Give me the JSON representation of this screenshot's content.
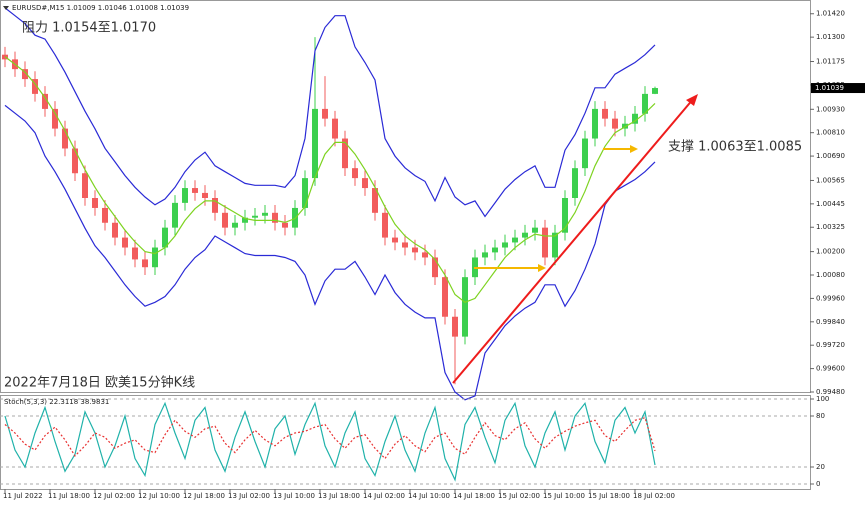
{
  "chart_data": [
    {
      "type": "candlestick",
      "title": "EURUSD#,M15  1.01009 1.01046 1.01008 1.01039",
      "annotations": [
        "阻力 1.0154至1.0170",
        "支撑 1.0063至1.0085",
        "2022年7月18日 欧美15分钟K线"
      ],
      "up_color": "#3ccf4e",
      "down_color": "#f25c5c",
      "open": [
        1.0121,
        1.01186,
        1.01136,
        1.01085,
        1.01009,
        1.00932,
        1.00831,
        1.00729,
        1.00602,
        1.00475,
        1.00424,
        1.00348,
        1.00272,
        1.00221,
        1.0016,
        1.0012,
        1.00221,
        1.00323,
        1.0045,
        1.00526,
        1.00501,
        1.00475,
        1.00399,
        1.00323,
        1.00348,
        1.00374,
        1.00384,
        1.00399,
        1.00348,
        1.00323,
        1.00424,
        1.00577,
        1.00932,
        1.00882,
        1.0078,
        1.00628,
        1.00577,
        1.00526,
        1.00399,
        1.00272,
        1.00247,
        1.00221,
        1.00196,
        1.0017,
        1.00069,
        0.99866,
        0.99764,
        1.00069,
        1.0017,
        1.00196,
        1.00221,
        1.00247,
        1.00272,
        1.00297,
        1.00323,
        1.0017,
        1.00297,
        1.00475,
        1.00628,
        1.0078,
        1.00932,
        1.00882,
        1.00831,
        1.00856,
        1.00907,
        1.01009
      ],
      "high": [
        1.0125,
        1.01226,
        1.01176,
        1.01125,
        1.01049,
        1.00972,
        1.00871,
        1.00769,
        1.00642,
        1.00515,
        1.00464,
        1.00388,
        1.00312,
        1.00261,
        1.002,
        1.00261,
        1.00363,
        1.0049,
        1.00566,
        1.00566,
        1.00541,
        1.00515,
        1.00439,
        1.00388,
        1.00414,
        1.00424,
        1.00439,
        1.00439,
        1.00388,
        1.00464,
        1.00617,
        1.013,
        1.011,
        1.00922,
        1.0082,
        1.00668,
        1.00617,
        1.00566,
        1.00439,
        1.00312,
        1.00287,
        1.00261,
        1.00236,
        1.0021,
        1.00109,
        0.99906,
        1.00109,
        1.0021,
        1.00236,
        1.00261,
        1.00287,
        1.00312,
        1.00337,
        1.00363,
        1.00363,
        1.00337,
        1.00515,
        1.00668,
        1.0082,
        1.00972,
        1.00972,
        1.00922,
        1.00896,
        1.00947,
        1.01049,
        1.01046
      ],
      "low": [
        1.01146,
        1.01096,
        1.01045,
        1.00969,
        1.00892,
        1.00791,
        1.00689,
        1.00562,
        1.00435,
        1.00384,
        1.00308,
        1.00232,
        1.00181,
        1.0012,
        1.0008,
        1.0008,
        1.00181,
        1.00283,
        1.0041,
        1.00461,
        1.00435,
        1.00359,
        1.00283,
        1.00283,
        1.00308,
        1.00334,
        1.00344,
        1.00308,
        1.00283,
        1.00283,
        1.00384,
        1.00537,
        1.00842,
        1.0074,
        1.00588,
        1.00537,
        1.00486,
        1.00359,
        1.00232,
        1.00207,
        1.00181,
        1.00156,
        1.0013,
        1.00029,
        0.99826,
        0.9952,
        0.99724,
        1.00029,
        1.0013,
        1.00156,
        1.00181,
        1.00207,
        1.00232,
        1.00257,
        1.0013,
        1.0013,
        1.00257,
        1.00435,
        1.00588,
        1.0074,
        1.00842,
        1.00791,
        1.00791,
        1.00816,
        1.00867,
        1.01008
      ],
      "close": [
        1.01186,
        1.01136,
        1.01085,
        1.01009,
        1.00932,
        1.00831,
        1.00729,
        1.00602,
        1.00475,
        1.00424,
        1.00348,
        1.00272,
        1.00221,
        1.0016,
        1.0012,
        1.00221,
        1.00323,
        1.0045,
        1.00526,
        1.00501,
        1.00475,
        1.00399,
        1.00323,
        1.00348,
        1.00374,
        1.00384,
        1.00399,
        1.00348,
        1.00323,
        1.00424,
        1.00577,
        1.00932,
        1.00882,
        1.0078,
        1.00628,
        1.00577,
        1.00526,
        1.00399,
        1.00272,
        1.00247,
        1.00221,
        1.00196,
        1.0017,
        1.00069,
        0.99866,
        0.99764,
        1.00069,
        1.0017,
        1.00196,
        1.00221,
        1.00247,
        1.00272,
        1.00297,
        1.00323,
        1.0017,
        1.00297,
        1.00475,
        1.00628,
        1.0078,
        1.00932,
        1.00882,
        1.00831,
        1.00856,
        1.00907,
        1.01009,
        1.01039
      ],
      "series": [
        {
          "color": "#2a2ad6",
          "values": [
            1.0145,
            1.0141,
            1.0137,
            1.0131,
            1.0129,
            1.0121,
            1.0112,
            1.0102,
            1.0092,
            1.0083,
            1.0073,
            1.0066,
            1.0059,
            1.0053,
            1.0048,
            1.0044,
            1.0047,
            1.0053,
            1.0061,
            1.0067,
            1.0071,
            1.0064,
            1.0061,
            1.0058,
            1.0055,
            1.0054,
            1.0054,
            1.0054,
            1.0053,
            1.0059,
            1.0078,
            1.0123,
            1.0135,
            1.0141,
            1.0141,
            1.0125,
            1.0117,
            1.0108,
            1.0078,
            1.0069,
            1.0063,
            1.0059,
            1.0056,
            1.0046,
            1.0058,
            1.0048,
            1.0044,
            1.0046,
            1.0038,
            1.0045,
            1.0052,
            1.0057,
            1.0061,
            1.0064,
            1.0053,
            1.0053,
            1.0072,
            1.008,
            1.0091,
            1.0104,
            1.0104,
            1.0111,
            1.0114,
            1.0117,
            1.0121,
            1.0126
          ]
        },
        {
          "color": "#7ed321",
          "values": [
            1.012,
            1.0116,
            1.0112,
            1.0106,
            1.0099,
            1.0091,
            1.0082,
            1.0072,
            1.0062,
            1.0053,
            1.0045,
            1.0038,
            1.0031,
            1.0025,
            1.002,
            1.0019,
            1.0022,
            1.0028,
            1.0036,
            1.0042,
            1.0046,
            1.0046,
            1.0043,
            1.004,
            1.0037,
            1.0036,
            1.0036,
            1.0036,
            1.0035,
            1.0037,
            1.0043,
            1.0058,
            1.007,
            1.0076,
            1.0076,
            1.007,
            1.0062,
            1.0053,
            1.0043,
            1.0034,
            1.0028,
            1.0024,
            1.0021,
            1.0016,
            1.0008,
            0.9998,
            0.9994,
            0.9996,
            1.0003,
            1.001,
            1.0017,
            1.0022,
            1.0026,
            1.0029,
            1.0028,
            1.0028,
            1.0032,
            1.004,
            1.0051,
            1.0064,
            1.0074,
            1.0081,
            1.0084,
            1.0087,
            1.0091,
            1.0096
          ]
        },
        {
          "color": "#2a2ad6",
          "values": [
            1.0095,
            1.0091,
            1.0087,
            1.0081,
            1.0069,
            1.0061,
            1.0052,
            1.0042,
            1.0032,
            1.0023,
            1.0017,
            1.001,
            1.0003,
            0.9997,
            0.9992,
            0.9994,
            0.9997,
            1.0003,
            1.0011,
            1.0017,
            1.0021,
            1.0028,
            1.0025,
            1.0022,
            1.0019,
            1.0018,
            1.0018,
            1.0018,
            1.0017,
            1.0015,
            1.0008,
            0.9993,
            1.0005,
            1.0011,
            1.0011,
            1.0015,
            1.0007,
            0.9998,
            1.0008,
            0.9999,
            0.9993,
            0.9989,
            0.9986,
            0.9986,
            0.9958,
            0.9948,
            0.9944,
            0.9946,
            0.9968,
            0.9975,
            0.9982,
            0.9987,
            0.9991,
            0.9994,
            1.0003,
            1.0003,
            0.9992,
            1.0,
            1.0011,
            1.0024,
            1.0044,
            1.0051,
            1.0054,
            1.0057,
            1.0061,
            1.0066
          ]
        }
      ],
      "xlim": [
        -0.5,
        80.5
      ],
      "ylim": [
        0.9948,
        1.0147
      ],
      "yticks": [
        {
          "value": 1.0142,
          "label": "1.01420"
        },
        {
          "value": 1.013,
          "label": "1.01300"
        },
        1.01175,
        1.01055,
        {
          "value": 1.0093,
          "label": "1.00930"
        },
        {
          "value": 1.0081,
          "label": "1.00810"
        },
        {
          "value": 1.0069,
          "label": "1.00690"
        },
        1.00565,
        1.00445,
        1.00325,
        {
          "value": 1.002,
          "label": "1.00200"
        },
        {
          "value": 1.0008,
          "label": "1.00080"
        },
        {
          "value": 0.9996,
          "label": "0.99960"
        },
        {
          "value": 0.9984,
          "label": "0.99840"
        },
        {
          "value": 0.9972,
          "label": "0.99720"
        },
        {
          "value": 0.996,
          "label": "0.99600"
        },
        {
          "value": 0.9948,
          "label": "0.99480"
        }
      ]
    },
    {
      "type": "line",
      "title": "Stoch(5,3,3) 22.3118 38.9831",
      "series": [
        {
          "color": "#20b2aa",
          "values": [
            80,
            40,
            20,
            60,
            90,
            50,
            15,
            35,
            85,
            60,
            20,
            45,
            80,
            30,
            10,
            70,
            95,
            60,
            30,
            75,
            90,
            40,
            15,
            55,
            85,
            50,
            20,
            65,
            80,
            35,
            70,
            95,
            45,
            20,
            60,
            85,
            30,
            10,
            50,
            80,
            40,
            15,
            60,
            90,
            30,
            5,
            70,
            90,
            55,
            25,
            75,
            95,
            45,
            20,
            60,
            85,
            40,
            80,
            95,
            50,
            25,
            75,
            90,
            60,
            85,
            22.3118
          ]
        },
        {
          "color": "#e83030",
          "dashed": true,
          "values": [
            70,
            60,
            47,
            40,
            57,
            67,
            52,
            33,
            45,
            60,
            55,
            42,
            48,
            52,
            40,
            37,
            58,
            75,
            62,
            55,
            65,
            68,
            48,
            37,
            52,
            63,
            52,
            45,
            55,
            60,
            62,
            67,
            70,
            53,
            42,
            55,
            58,
            42,
            30,
            47,
            57,
            45,
            38,
            55,
            60,
            42,
            35,
            55,
            72,
            57,
            52,
            65,
            72,
            53,
            42,
            55,
            62,
            68,
            72,
            75,
            57,
            50,
            63,
            75,
            78,
            38.9831
          ]
        }
      ],
      "xlim": [
        -0.5,
        80.5
      ],
      "ylim": [
        0,
        100
      ],
      "yticks": [
        0,
        20,
        80,
        100
      ],
      "grid": true,
      "xticks": [
        {
          "value": 0,
          "label": "11 Jul 2022"
        },
        {
          "value": 4.5,
          "label": "11 Jul 18:00"
        },
        {
          "value": 9,
          "label": "12 Jul 02:00"
        },
        {
          "value": 13.5,
          "label": "12 Jul 10:00"
        },
        {
          "value": 18,
          "label": "12 Jul 18:00"
        },
        {
          "value": 22.5,
          "label": "13 Jul 02:00"
        },
        {
          "value": 27,
          "label": "13 Jul 10:00"
        },
        {
          "value": 31.5,
          "label": "13 Jul 18:00"
        },
        {
          "value": 36,
          "label": "14 Jul 02:00"
        },
        {
          "value": 40.5,
          "label": "14 Jul 10:00"
        },
        {
          "value": 45,
          "label": "14 Jul 18:00"
        },
        {
          "value": 49.5,
          "label": "15 Jul 02:00"
        },
        {
          "value": 54,
          "label": "15 Jul 10:00"
        },
        {
          "value": 58.5,
          "label": "15 Jul 18:00"
        },
        {
          "value": 63,
          "label": "18 Jul 02:00"
        }
      ]
    }
  ]
}
